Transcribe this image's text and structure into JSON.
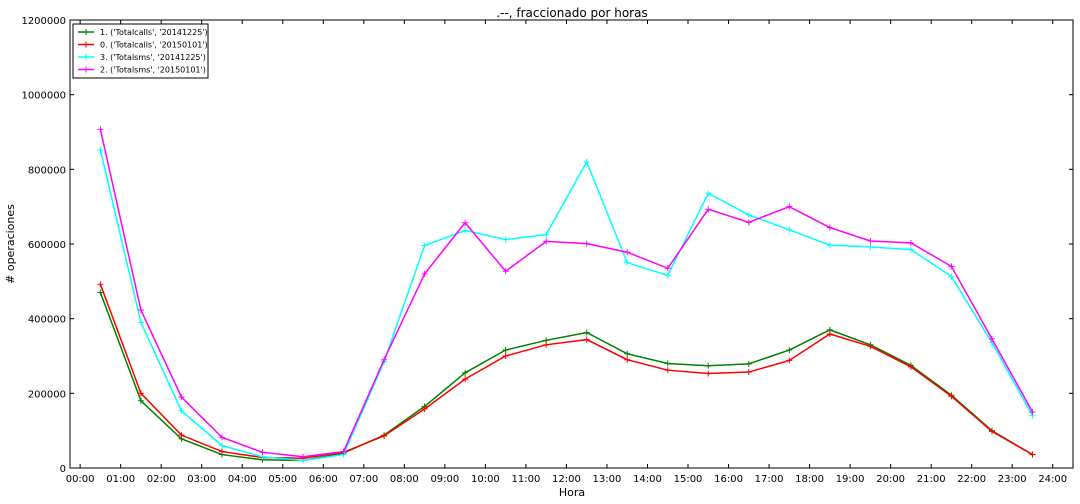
{
  "chart_data": {
    "type": "line",
    "title": ".--, fraccionado por horas",
    "xlabel": "Hora",
    "ylabel": "# operaciones",
    "x_tick_labels": [
      "00:00",
      "01:00",
      "02:00",
      "03:00",
      "04:00",
      "05:00",
      "06:00",
      "07:00",
      "08:00",
      "09:00",
      "10:00",
      "11:00",
      "12:00",
      "13:00",
      "14:00",
      "15:00",
      "16:00",
      "17:00",
      "18:00",
      "19:00",
      "20:00",
      "21:00",
      "22:00",
      "23:00",
      "24:00"
    ],
    "y_tick_labels": [
      "0",
      "200000",
      "400000",
      "600000",
      "800000",
      "1000000",
      "1200000"
    ],
    "xlim": [
      -0.25,
      24.5
    ],
    "ylim": [
      0,
      1200000
    ],
    "x": [
      0.5,
      1.5,
      2.5,
      3.5,
      4.5,
      5.5,
      6.5,
      7.5,
      8.5,
      9.5,
      10.5,
      11.5,
      12.5,
      13.5,
      14.5,
      15.5,
      16.5,
      17.5,
      18.5,
      19.5,
      20.5,
      21.5,
      22.5,
      23.5
    ],
    "grid": false,
    "legend_position": "top-left",
    "series": [
      {
        "name": "1. ('Totalcalls', '20141225')",
        "color": "#007f00",
        "values": [
          470000,
          180000,
          78000,
          36000,
          22000,
          20000,
          40000,
          88000,
          165000,
          255000,
          316000,
          342000,
          363000,
          306000,
          280000,
          274000,
          279000,
          316000,
          370000,
          330000,
          275000,
          195000,
          100000,
          36000
        ]
      },
      {
        "name": "0. ('Totalcalls', '20150101')",
        "color": "#ff0000",
        "values": [
          492000,
          200000,
          88000,
          44000,
          28000,
          26000,
          42000,
          86000,
          158000,
          238000,
          300000,
          330000,
          344000,
          290000,
          262000,
          253000,
          257000,
          288000,
          359000,
          326000,
          271000,
          192000,
          98000,
          36000
        ]
      },
      {
        "name": "3. ('Totalsms', '20141225')",
        "color": "#00ffff",
        "values": [
          852000,
          390000,
          153000,
          60000,
          30000,
          20000,
          36000,
          285000,
          596000,
          636000,
          612000,
          625000,
          820000,
          550000,
          516000,
          736000,
          678000,
          638000,
          597000,
          592000,
          585000,
          513000,
          336000,
          140000
        ]
      },
      {
        "name": "2. ('Totalsms', '20150101')",
        "color": "#ff00ff",
        "values": [
          907000,
          423000,
          190000,
          82000,
          42000,
          30000,
          44000,
          290000,
          520000,
          657000,
          527000,
          607000,
          601000,
          578000,
          535000,
          693000,
          658000,
          700000,
          644000,
          608000,
          603000,
          540000,
          346000,
          150000
        ]
      }
    ]
  }
}
